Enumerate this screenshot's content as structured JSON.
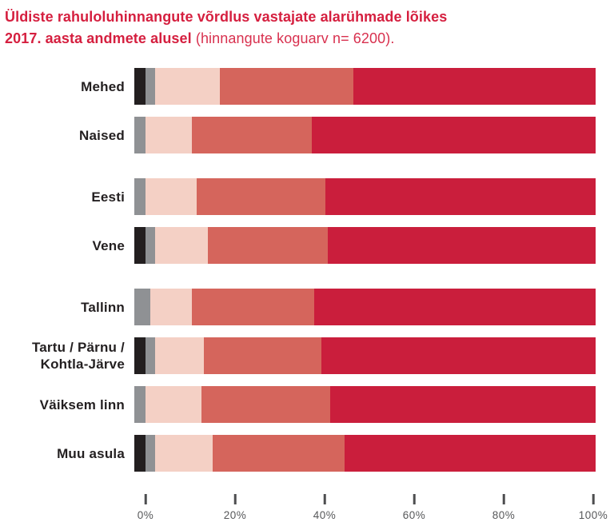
{
  "title": {
    "line1": "Üldiste rahuloluhinnangute võrdlus vastajate alarühmade lõikes",
    "line2_bold": "2017. aasta andmete alusel",
    "line2_light": " (hinnangute koguarv n= 6200)."
  },
  "colors": {
    "title_red": "#d51f3f",
    "label_dark": "#231f20",
    "axis_gray": "#57585a",
    "tick_mark": "#4d4e50",
    "segment_black": "#231f20",
    "segment_gray": "#8f9194",
    "segment_pink": "#f4d0c5",
    "segment_salmon": "#d5655c",
    "segment_crimson": "#ca1e3c"
  },
  "chart_data": {
    "type": "bar",
    "orientation": "horizontal",
    "stacked": true,
    "unit": "%",
    "title": "Üldiste rahuloluhinnangute võrdlus vastajate alarühmade lõikes 2017. aasta andmete alusel (hinnangute koguarv n= 6200).",
    "categories": [
      "Mehed",
      "Naised",
      "Eesti",
      "Vene",
      "Tallinn",
      "Tartu / Pärnu / Kohtla-Järve",
      "Väiksem linn",
      "Muu asula"
    ],
    "groups": [
      1,
      1,
      2,
      2,
      3,
      3,
      3,
      3
    ],
    "series": [
      {
        "name": "black-segment",
        "color": "#231f20",
        "values": [
          2.5,
          0,
          0,
          2.5,
          0,
          2.5,
          0,
          2.5
        ]
      },
      {
        "name": "gray-segment",
        "color": "#8f9194",
        "values": [
          2,
          2.5,
          2.5,
          2,
          3.5,
          2,
          2.5,
          2
        ]
      },
      {
        "name": "pink-segment",
        "color": "#f4d0c5",
        "values": [
          14,
          10,
          11,
          11.5,
          9,
          10.5,
          12,
          12.5
        ]
      },
      {
        "name": "salmon-segment",
        "color": "#d5655c",
        "values": [
          29,
          26,
          28,
          26,
          26.5,
          25.5,
          28,
          28.5
        ]
      },
      {
        "name": "crimson-segment",
        "color": "#ca1e3c",
        "values": [
          52.5,
          61.5,
          58.5,
          58,
          61,
          59.5,
          57.5,
          54.5
        ]
      }
    ],
    "x_axis": {
      "ticks": [
        "0%",
        "20%",
        "40%",
        "60%",
        "80%",
        "100%"
      ],
      "range": [
        0,
        100
      ],
      "grid": false
    },
    "legend": "none"
  }
}
